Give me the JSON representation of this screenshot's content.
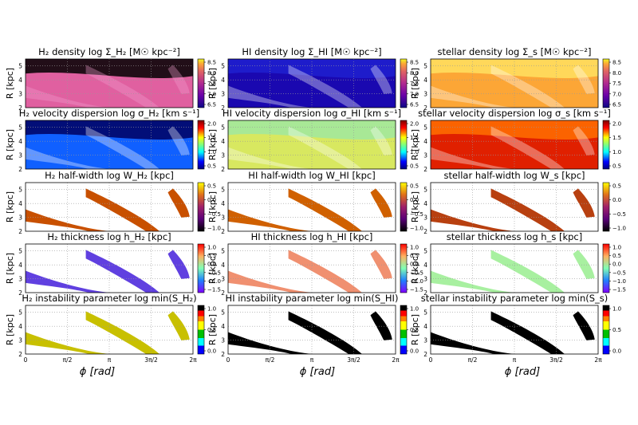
{
  "figure": {
    "x_axis_label": "ϕ [rad]",
    "y_axis_label": "R [kpc]",
    "x_ticks": [
      "0",
      "π/2",
      "π",
      "3π/2",
      "2π"
    ],
    "y_ticks": [
      "2",
      "3",
      "4",
      "5"
    ]
  },
  "chart_data": [
    {
      "type": "heatmap",
      "row": "density",
      "column": "H2",
      "title": "H₂ density   log Σ_H₂ [M☉ kpc⁻²]",
      "colormap": "plasma",
      "cbar_ticks": [
        "8.5",
        "8.0",
        "7.5",
        "7.0",
        "6.5"
      ],
      "cbar_range": [
        6.5,
        8.7
      ],
      "xlim": [
        0,
        6.283
      ],
      "ylim": [
        2,
        5.5
      ]
    },
    {
      "type": "heatmap",
      "row": "density",
      "column": "HI",
      "title": "HI density   log Σ_HI [M☉ kpc⁻²]",
      "colormap": "plasma",
      "cbar_ticks": [
        "8.5",
        "8.0",
        "7.5",
        "7.0",
        "6.5"
      ],
      "cbar_range": [
        6.5,
        8.7
      ],
      "xlim": [
        0,
        6.283
      ],
      "ylim": [
        2,
        5.5
      ]
    },
    {
      "type": "heatmap",
      "row": "density",
      "column": "stellar",
      "title": "stellar density   log Σ_s [M☉ kpc⁻²]",
      "colormap": "plasma",
      "cbar_ticks": [
        "8.5",
        "8.0",
        "7.5",
        "7.0",
        "6.5"
      ],
      "cbar_range": [
        6.5,
        8.7
      ],
      "xlim": [
        0,
        6.283
      ],
      "ylim": [
        2,
        5.5
      ]
    },
    {
      "type": "heatmap",
      "row": "dispersion",
      "column": "H2",
      "title": "H₂ velocity dispersion   log σ_H₂ [km s⁻¹]",
      "colormap": "jet",
      "cbar_ticks": [
        "2.0",
        "1.5",
        "1.0",
        "0.5"
      ],
      "cbar_range": [
        0.5,
        2.0
      ],
      "xlim": [
        0,
        6.283
      ],
      "ylim": [
        2,
        5.5
      ]
    },
    {
      "type": "heatmap",
      "row": "dispersion",
      "column": "HI",
      "title": "HI velocity dispersion   log σ_HI [km s⁻¹]",
      "colormap": "jet",
      "cbar_ticks": [
        "2.0",
        "1.5",
        "1.0",
        "0.5"
      ],
      "cbar_range": [
        0.5,
        2.0
      ],
      "xlim": [
        0,
        6.283
      ],
      "ylim": [
        2,
        5.5
      ]
    },
    {
      "type": "heatmap",
      "row": "dispersion",
      "column": "stellar",
      "title": "stellar velocity dispersion   log σ_s [km s⁻¹]",
      "colormap": "jet",
      "cbar_ticks": [
        "2.0",
        "1.5",
        "1.0",
        "0.5"
      ],
      "cbar_range": [
        0.5,
        2.0
      ],
      "xlim": [
        0,
        6.283
      ],
      "ylim": [
        2,
        5.5
      ]
    },
    {
      "type": "heatmap",
      "row": "halfwidth",
      "column": "H2",
      "title": "H₂ half-width   log W_H₂ [kpc]",
      "colormap": "gnuplot",
      "cbar_ticks": [
        "0.5",
        "0.0",
        "−0.5",
        "−1.0"
      ],
      "cbar_range": [
        -1.0,
        0.5
      ],
      "xlim": [
        0,
        6.283
      ],
      "ylim": [
        2,
        5.5
      ]
    },
    {
      "type": "heatmap",
      "row": "halfwidth",
      "column": "HI",
      "title": "HI half-width   log W_HI [kpc]",
      "colormap": "gnuplot",
      "cbar_ticks": [
        "0.5",
        "0.0",
        "−0.5",
        "−1.0"
      ],
      "cbar_range": [
        -1.0,
        0.5
      ],
      "xlim": [
        0,
        6.283
      ],
      "ylim": [
        2,
        5.5
      ]
    },
    {
      "type": "heatmap",
      "row": "halfwidth",
      "column": "stellar",
      "title": "stellar half-width   log W_s [kpc]",
      "colormap": "gnuplot",
      "cbar_ticks": [
        "0.5",
        "0.0",
        "−0.5",
        "−1.0"
      ],
      "cbar_range": [
        -1.0,
        0.5
      ],
      "xlim": [
        0,
        6.283
      ],
      "ylim": [
        2,
        5.5
      ]
    },
    {
      "type": "heatmap",
      "row": "thickness",
      "column": "H2",
      "title": "H₂ thickness   log h_H₂ [kpc]",
      "colormap": "rainbow",
      "cbar_ticks": [
        "1.0",
        "0.5",
        "0.0",
        "−0.5",
        "−1.0",
        "−1.5"
      ],
      "cbar_range": [
        -1.5,
        1.0
      ],
      "xlim": [
        0,
        6.283
      ],
      "ylim": [
        2,
        5.5
      ]
    },
    {
      "type": "heatmap",
      "row": "thickness",
      "column": "HI",
      "title": "HI thickness   log h_HI [kpc]",
      "colormap": "rainbow",
      "cbar_ticks": [
        "1.0",
        "0.5",
        "0.0",
        "−0.5",
        "−1.0",
        "−1.5"
      ],
      "cbar_range": [
        -1.5,
        1.0
      ],
      "xlim": [
        0,
        6.283
      ],
      "ylim": [
        2,
        5.5
      ]
    },
    {
      "type": "heatmap",
      "row": "thickness",
      "column": "stellar",
      "title": "stellar thickness   log h_s [kpc]",
      "colormap": "rainbow",
      "cbar_ticks": [
        "1.0",
        "0.5",
        "0.0",
        "−0.5",
        "−1.0",
        "−1.5"
      ],
      "cbar_range": [
        -1.5,
        1.0
      ],
      "xlim": [
        0,
        6.283
      ],
      "ylim": [
        2,
        5.5
      ]
    },
    {
      "type": "heatmap",
      "row": "instability",
      "column": "H2",
      "title": "H₂ instability parameter   log min(S_H₂)",
      "colormap": "discrete",
      "cbar_ticks": [
        "1.0",
        "0.5",
        "0.0"
      ],
      "cbar_range": [
        -0.5,
        1.0
      ],
      "xlim": [
        0,
        6.283
      ],
      "ylim": [
        2,
        5.5
      ]
    },
    {
      "type": "heatmap",
      "row": "instability",
      "column": "HI",
      "title": "HI instability parameter   log min(S_HI)",
      "colormap": "discrete",
      "cbar_ticks": [
        "1.0",
        "0.5",
        "0.0"
      ],
      "cbar_range": [
        -0.5,
        1.0
      ],
      "xlim": [
        0,
        6.283
      ],
      "ylim": [
        2,
        5.5
      ]
    },
    {
      "type": "heatmap",
      "row": "instability",
      "column": "stellar",
      "title": "stellar instability parameter   log min(S_s)",
      "colormap": "discrete",
      "cbar_ticks": [
        "1.0",
        "0.5",
        "0.0"
      ],
      "cbar_range": [
        -0.5,
        1.0
      ],
      "xlim": [
        0,
        6.283
      ],
      "ylim": [
        2,
        5.5
      ]
    }
  ]
}
